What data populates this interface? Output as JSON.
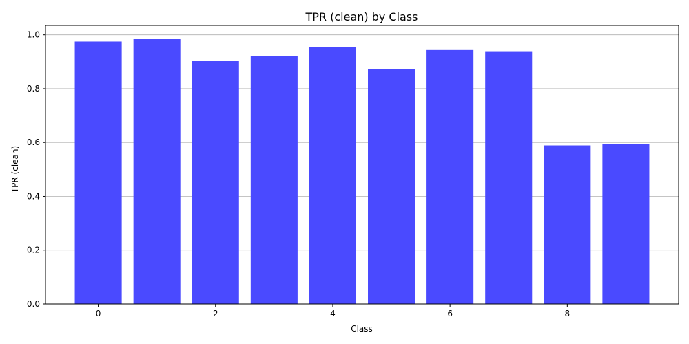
{
  "chart_data": {
    "type": "bar",
    "title": "TPR (clean) by Class",
    "xlabel": "Class",
    "ylabel": "TPR (clean)",
    "categories": [
      0,
      1,
      2,
      3,
      4,
      5,
      6,
      7,
      8,
      9
    ],
    "values": [
      0.975,
      0.985,
      0.903,
      0.921,
      0.954,
      0.872,
      0.946,
      0.939,
      0.589,
      0.595
    ],
    "x_ticks": [
      0,
      2,
      4,
      6,
      8
    ],
    "y_ticks": [
      0.0,
      0.2,
      0.4,
      0.6,
      0.8,
      1.0
    ],
    "ylim": [
      0,
      1.035
    ],
    "xlim": [
      -0.9,
      9.9
    ],
    "bar_color": "#4a4aff",
    "grid": "y-major",
    "legend": "none"
  }
}
